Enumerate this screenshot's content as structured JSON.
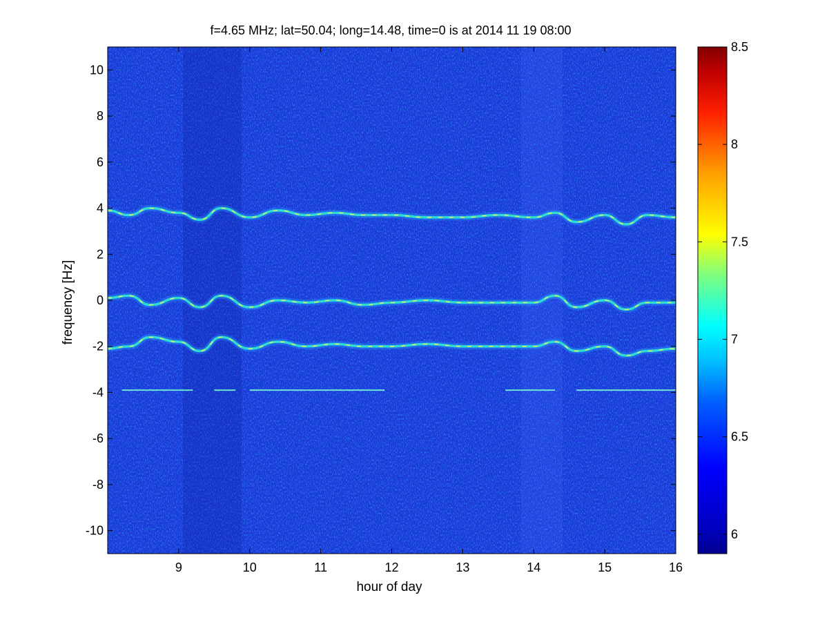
{
  "chart_data": {
    "type": "heatmap",
    "title": "f=4.65 MHz;  lat=50.04; long=14.48, time=0 is at 2014 11 19 08:00",
    "xlabel": "hour of day",
    "ylabel": "frequency [Hz]",
    "xlim": [
      8,
      16
    ],
    "ylim": [
      -11,
      11
    ],
    "x_ticks": [
      "9",
      "10",
      "11",
      "12",
      "13",
      "14",
      "15",
      "16"
    ],
    "y_ticks": [
      "10",
      "8",
      "6",
      "4",
      "2",
      "0",
      "-2",
      "-4",
      "-6",
      "-8",
      "-10"
    ],
    "colormap": "jet",
    "colorbar": {
      "range": [
        5.9,
        8.5
      ],
      "ticks": [
        "8.5",
        "8",
        "7.5",
        "7",
        "6.5",
        "6"
      ],
      "colors": [
        "#00008f",
        "#0000ff",
        "#00ffff",
        "#ffff00",
        "#ff0000",
        "#800000"
      ]
    },
    "background_level": 6.1,
    "traces": [
      {
        "center_hz": 3.8,
        "x": [
          8.0,
          8.3,
          8.6,
          9.0,
          9.3,
          9.6,
          10.0,
          10.4,
          10.8,
          11.2,
          11.6,
          12.0,
          12.5,
          13.0,
          13.5,
          14.0,
          14.3,
          14.6,
          15.0,
          15.3,
          15.6,
          16.0
        ],
        "y": [
          3.9,
          3.7,
          4.0,
          3.8,
          3.5,
          4.0,
          3.6,
          3.9,
          3.7,
          3.8,
          3.7,
          3.7,
          3.6,
          3.6,
          3.7,
          3.6,
          3.8,
          3.4,
          3.7,
          3.3,
          3.7,
          3.6
        ]
      },
      {
        "center_hz": 0.0,
        "x": [
          8.0,
          8.3,
          8.6,
          9.0,
          9.3,
          9.6,
          10.0,
          10.4,
          10.8,
          11.2,
          11.6,
          12.0,
          12.5,
          13.0,
          13.5,
          14.0,
          14.3,
          14.6,
          15.0,
          15.3,
          15.6,
          16.0
        ],
        "y": [
          0.1,
          0.2,
          -0.2,
          0.1,
          -0.3,
          0.2,
          -0.3,
          0.0,
          -0.1,
          0.0,
          -0.2,
          -0.1,
          0.0,
          -0.1,
          -0.1,
          -0.1,
          0.2,
          -0.3,
          0.0,
          -0.4,
          -0.1,
          -0.1
        ]
      },
      {
        "center_hz": -2.0,
        "x": [
          8.0,
          8.3,
          8.6,
          9.0,
          9.3,
          9.6,
          10.0,
          10.4,
          10.8,
          11.2,
          11.6,
          12.0,
          12.5,
          13.0,
          13.5,
          14.0,
          14.3,
          14.6,
          15.0,
          15.3,
          15.6,
          16.0
        ],
        "y": [
          -2.1,
          -2.0,
          -1.6,
          -1.8,
          -2.2,
          -1.6,
          -2.1,
          -1.8,
          -2.0,
          -1.9,
          -2.0,
          -2.0,
          -1.9,
          -2.0,
          -2.0,
          -2.0,
          -1.8,
          -2.2,
          -2.0,
          -2.4,
          -2.2,
          -2.1
        ]
      }
    ],
    "steady_line": {
      "frequency_hz": -3.9,
      "segments": [
        [
          8.2,
          9.2
        ],
        [
          9.5,
          9.8
        ],
        [
          10.0,
          11.9
        ],
        [
          13.6,
          14.3
        ],
        [
          14.6,
          16.0
        ]
      ]
    }
  }
}
